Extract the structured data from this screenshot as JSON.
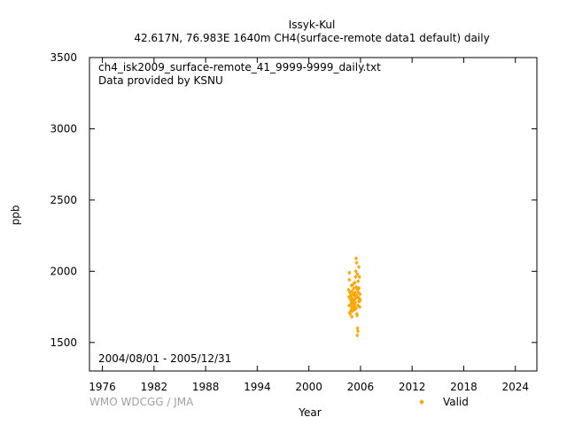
{
  "header": {
    "station": "Issyk-Kul",
    "subtitle": "42.617N, 76.983E 1640m    CH4(surface-remote data1 default) daily"
  },
  "annotations": {
    "filename": "ch4_isk2009_surface-remote_41_9999-9999_daily.txt",
    "provider": "Data provided by KSNU",
    "period": "2004/08/01 - 2005/12/31"
  },
  "footer": {
    "credit": "WMO WDCGG / JMA"
  },
  "legend": {
    "valid_label": "Valid",
    "valid_color": "#ffa500"
  },
  "chart_data": {
    "type": "scatter",
    "xlabel": "Year",
    "ylabel": "ppb",
    "xlim": [
      1974.5,
      2026.5
    ],
    "ylim": [
      1300,
      3500
    ],
    "xticks": [
      1976,
      1982,
      1988,
      1994,
      2000,
      2006,
      2012,
      2018,
      2024
    ],
    "yticks": [
      1500,
      2000,
      2500,
      3000,
      3500
    ],
    "grid": false,
    "legend_position": "bottom-right",
    "series": [
      {
        "name": "Valid",
        "color": "#ffa500",
        "marker": "diamond",
        "x": [
          2004.62,
          2004.65,
          2004.68,
          2004.71,
          2004.74,
          2004.77,
          2004.8,
          2004.83,
          2004.86,
          2004.89,
          2004.92,
          2004.95,
          2004.98,
          2005.01,
          2005.04,
          2005.07,
          2005.1,
          2005.13,
          2005.16,
          2005.19,
          2005.22,
          2005.25,
          2005.28,
          2005.31,
          2005.34,
          2005.37,
          2005.4,
          2005.43,
          2005.46,
          2005.49,
          2005.52,
          2005.55,
          2005.58,
          2005.61,
          2005.64,
          2005.67,
          2005.7,
          2005.73,
          2005.76,
          2005.79,
          2005.82,
          2005.85,
          2005.88,
          2005.91,
          2005.94,
          2005.97,
          2004.7,
          2004.85,
          2005.0,
          2005.15,
          2005.3,
          2005.45,
          2005.6,
          2005.75,
          2005.9,
          2005.5,
          2005.55,
          2005.65,
          2005.8,
          2005.7,
          2005.62,
          2005.58
        ],
        "y": [
          1870,
          1820,
          1760,
          1990,
          1710,
          1850,
          1700,
          1800,
          1760,
          1830,
          1780,
          1900,
          1740,
          1810,
          1860,
          1720,
          1790,
          1840,
          1770,
          1750,
          1880,
          1800,
          1830,
          1760,
          1920,
          1850,
          1780,
          1960,
          1810,
          1740,
          1890,
          1830,
          1700,
          1870,
          1980,
          1820,
          1760,
          1930,
          1850,
          1790,
          1880,
          1810,
          1960,
          1750,
          1840,
          1800,
          1940,
          1720,
          1680,
          1910,
          1730,
          2000,
          1690,
          1880,
          1790,
          2090,
          2060,
          1600,
          2030,
          1580,
          1550,
          1700
        ]
      }
    ]
  }
}
